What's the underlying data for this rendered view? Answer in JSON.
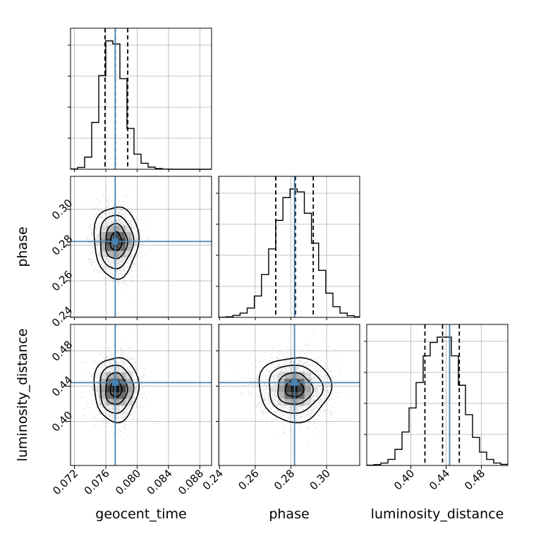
{
  "chart_data": {
    "type": "corner",
    "parameters": [
      "geocent_time",
      "phase",
      "luminosity_distance"
    ],
    "truth": {
      "geocent_time": 0.0772,
      "phase": 0.282,
      "luminosity_distance": 0.444
    },
    "colors": {
      "truth": "#4682b4",
      "hist": "#000000",
      "grid": "#b0b0b0",
      "samples": "#808080"
    },
    "grid": true,
    "axes": {
      "geocent_time": {
        "range": [
          0.0715,
          0.0895
        ],
        "ticks": [
          0.072,
          0.076,
          0.08,
          0.084,
          0.088
        ],
        "tick_labels": [
          "0.072",
          "0.076",
          "0.080",
          "0.084",
          "0.088"
        ]
      },
      "phase": {
        "range": [
          0.2395,
          0.3185
        ],
        "ticks": [
          0.24,
          0.26,
          0.28,
          0.3
        ],
        "tick_labels": [
          "0.24",
          "0.26",
          "0.28",
          "0.30"
        ]
      },
      "luminosity_distance": {
        "range": [
          0.35,
          0.51
        ],
        "ticks": [
          0.4,
          0.44,
          0.48
        ],
        "tick_labels": [
          "0.40",
          "0.44",
          "0.48"
        ]
      }
    },
    "histograms": {
      "geocent_time": {
        "quantiles": [
          0.0759,
          0.0772,
          0.0788
        ],
        "bin_edges": [
          0.0715,
          0.0724,
          0.0733,
          0.0742,
          0.0751,
          0.076,
          0.0769,
          0.0778,
          0.0787,
          0.0796,
          0.0805,
          0.0814,
          0.0823,
          0.0832,
          0.0841,
          0.085,
          0.0859,
          0.0868,
          0.0877,
          0.0886,
          0.0895
        ],
        "counts": [
          2,
          12,
          80,
          310,
          620,
          850,
          830,
          600,
          270,
          100,
          40,
          14,
          5,
          1,
          0,
          0,
          0,
          0,
          0,
          0
        ]
      },
      "phase": {
        "quantiles": [
          0.2715,
          0.2825,
          0.2925
        ],
        "bin_edges": [
          0.2395,
          0.2435,
          0.2475,
          0.2515,
          0.2555,
          0.2595,
          0.2635,
          0.2675,
          0.2715,
          0.2755,
          0.2795,
          0.2835,
          0.2875,
          0.2915,
          0.2955,
          0.2995,
          0.3035,
          0.3075,
          0.3115,
          0.3155,
          0.3185
        ],
        "counts": [
          1,
          4,
          14,
          30,
          65,
          150,
          300,
          480,
          680,
          840,
          900,
          880,
          730,
          520,
          330,
          170,
          75,
          30,
          12,
          4
        ]
      },
      "luminosity_distance": {
        "quantiles": [
          0.416,
          0.436,
          0.455
        ],
        "bin_edges": [
          0.35,
          0.358,
          0.366,
          0.374,
          0.382,
          0.39,
          0.398,
          0.406,
          0.414,
          0.422,
          0.43,
          0.438,
          0.446,
          0.454,
          0.462,
          0.47,
          0.478,
          0.486,
          0.494,
          0.502,
          0.51
        ],
        "counts": [
          2,
          6,
          18,
          45,
          120,
          250,
          430,
          620,
          820,
          920,
          960,
          960,
          820,
          600,
          380,
          210,
          100,
          45,
          18,
          8
        ]
      }
    },
    "scatter_panels": [
      {
        "x": "geocent_time",
        "y": "phase"
      },
      {
        "x": "geocent_time",
        "y": "luminosity_distance"
      },
      {
        "x": "phase",
        "y": "luminosity_distance"
      }
    ]
  }
}
